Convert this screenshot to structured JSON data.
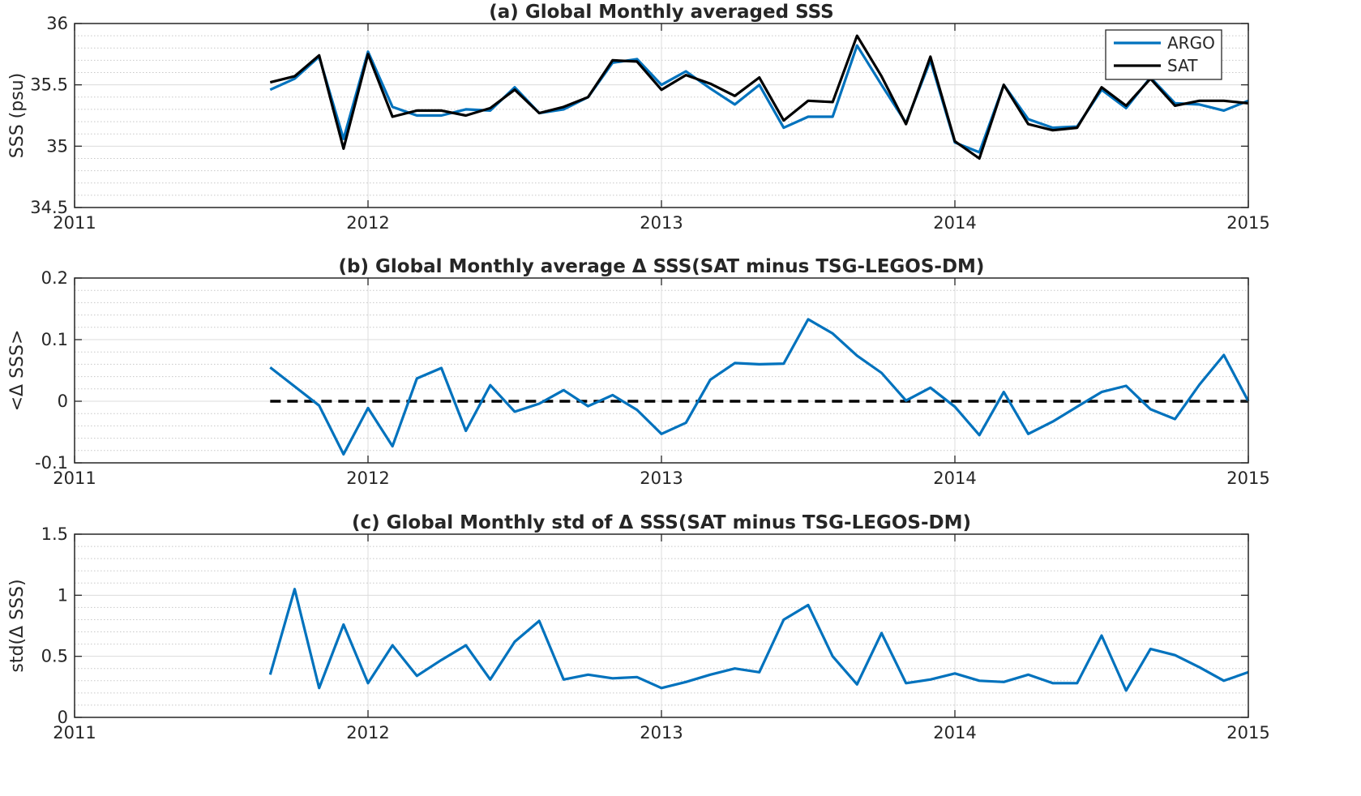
{
  "chart_data": [
    {
      "type": "line",
      "title": "(a) Global Monthly averaged SSS",
      "xlabel": "",
      "ylabel": "SSS (psu)",
      "xlim": [
        "2011-01-01",
        "2015-01-01"
      ],
      "ylim": [
        34.5,
        36
      ],
      "xticks": [
        "2011",
        "2012",
        "2013",
        "2014",
        "2015"
      ],
      "yticks": [
        "34.5",
        "35",
        "35.5",
        "36"
      ],
      "grid": true,
      "legend": "top-right",
      "x": [
        "2011-09",
        "2011-10",
        "2011-11",
        "2011-12",
        "2012-01",
        "2012-02",
        "2012-03",
        "2012-04",
        "2012-05",
        "2012-06",
        "2012-07",
        "2012-08",
        "2012-09",
        "2012-10",
        "2012-11",
        "2012-12",
        "2013-01",
        "2013-02",
        "2013-03",
        "2013-04",
        "2013-05",
        "2013-06",
        "2013-07",
        "2013-08",
        "2013-09",
        "2013-10",
        "2013-11",
        "2013-12",
        "2014-01",
        "2014-02",
        "2014-03",
        "2014-04",
        "2014-05",
        "2014-06",
        "2014-07",
        "2014-08",
        "2014-09",
        "2014-10",
        "2014-11",
        "2014-12",
        "2015-01"
      ],
      "series": [
        {
          "name": "ARGO",
          "color": "#0072BD",
          "values": [
            35.46,
            35.55,
            35.73,
            35.06,
            35.77,
            35.32,
            35.25,
            35.25,
            35.3,
            35.29,
            35.48,
            35.27,
            35.3,
            35.4,
            35.68,
            35.71,
            35.5,
            35.61,
            35.47,
            35.34,
            35.5,
            35.15,
            35.24,
            35.24,
            35.82,
            35.5,
            35.19,
            35.7,
            35.03,
            34.95,
            35.5,
            35.22,
            35.15,
            35.16,
            35.46,
            35.31,
            35.56,
            35.35,
            35.34,
            35.29,
            35.37
          ]
        },
        {
          "name": "SAT",
          "color": "#000000",
          "values": [
            35.52,
            35.57,
            35.74,
            34.98,
            35.75,
            35.24,
            35.29,
            35.29,
            35.25,
            35.31,
            35.46,
            35.27,
            35.32,
            35.4,
            35.7,
            35.69,
            35.46,
            35.58,
            35.51,
            35.41,
            35.56,
            35.21,
            35.37,
            35.36,
            35.9,
            35.57,
            35.18,
            35.73,
            35.04,
            34.9,
            35.5,
            35.18,
            35.13,
            35.15,
            35.48,
            35.33,
            35.55,
            35.33,
            35.37,
            35.37,
            35.35
          ]
        }
      ]
    },
    {
      "type": "line",
      "title": "(b) Global Monthly average Δ SSS(SAT minus TSG-LEGOS-DM)",
      "xlabel": "",
      "ylabel": "<Δ SSS>",
      "xlim": [
        "2011-01-01",
        "2015-01-01"
      ],
      "ylim": [
        -0.1,
        0.2
      ],
      "xticks": [
        "2011",
        "2012",
        "2013",
        "2014",
        "2015"
      ],
      "yticks": [
        "-0.1",
        "0",
        "0.1",
        "0.2"
      ],
      "grid": true,
      "reference_line": {
        "y": 0,
        "style": "dashed",
        "color": "#000000"
      },
      "x": [
        "2011-09",
        "2011-10",
        "2011-11",
        "2011-12",
        "2012-01",
        "2012-02",
        "2012-03",
        "2012-04",
        "2012-05",
        "2012-06",
        "2012-07",
        "2012-08",
        "2012-09",
        "2012-10",
        "2012-11",
        "2012-12",
        "2013-01",
        "2013-02",
        "2013-03",
        "2013-04",
        "2013-05",
        "2013-06",
        "2013-07",
        "2013-08",
        "2013-09",
        "2013-10",
        "2013-11",
        "2013-12",
        "2014-01",
        "2014-02",
        "2014-03",
        "2014-04",
        "2014-05",
        "2014-06",
        "2014-07",
        "2014-08",
        "2014-09",
        "2014-10",
        "2014-11",
        "2014-12",
        "2015-01"
      ],
      "series": [
        {
          "color": "#0072BD",
          "values": [
            0.055,
            0.024,
            -0.007,
            -0.086,
            -0.011,
            -0.073,
            0.037,
            0.054,
            -0.048,
            0.026,
            -0.017,
            -0.004,
            0.018,
            -0.008,
            0.01,
            -0.014,
            -0.053,
            -0.035,
            0.035,
            0.062,
            0.06,
            0.061,
            0.133,
            0.11,
            0.074,
            0.046,
            0.001,
            0.022,
            -0.009,
            -0.055,
            0.015,
            -0.053,
            -0.033,
            -0.009,
            0.015,
            0.025,
            -0.013,
            -0.029,
            0.027,
            0.075,
            0.0
          ]
        }
      ]
    },
    {
      "type": "line",
      "title": "(c) Global Monthly std of Δ SSS(SAT minus TSG-LEGOS-DM)",
      "xlabel": "",
      "ylabel": "std(Δ SSS)",
      "xlim": [
        "2011-01-01",
        "2015-01-01"
      ],
      "ylim": [
        0,
        1.5
      ],
      "xticks": [
        "2011",
        "2012",
        "2013",
        "2014",
        "2015"
      ],
      "yticks": [
        "0",
        "0.5",
        "1",
        "1.5"
      ],
      "grid": true,
      "x": [
        "2011-09",
        "2011-10",
        "2011-11",
        "2011-12",
        "2012-01",
        "2012-02",
        "2012-03",
        "2012-04",
        "2012-05",
        "2012-06",
        "2012-07",
        "2012-08",
        "2012-09",
        "2012-10",
        "2012-11",
        "2012-12",
        "2013-01",
        "2013-02",
        "2013-03",
        "2013-04",
        "2013-05",
        "2013-06",
        "2013-07",
        "2013-08",
        "2013-09",
        "2013-10",
        "2013-11",
        "2013-12",
        "2014-01",
        "2014-02",
        "2014-03",
        "2014-04",
        "2014-05",
        "2014-06",
        "2014-07",
        "2014-08",
        "2014-09",
        "2014-10",
        "2014-11",
        "2014-12",
        "2015-01"
      ],
      "series": [
        {
          "color": "#0072BD",
          "values": [
            0.35,
            1.05,
            0.24,
            0.76,
            0.28,
            0.59,
            0.34,
            0.47,
            0.59,
            0.31,
            0.62,
            0.79,
            0.31,
            0.35,
            0.32,
            0.33,
            0.24,
            0.29,
            0.35,
            0.4,
            0.37,
            0.8,
            0.92,
            0.5,
            0.27,
            0.69,
            0.28,
            0.31,
            0.36,
            0.3,
            0.29,
            0.35,
            0.28,
            0.28,
            0.67,
            0.22,
            0.56,
            0.51,
            0.41,
            0.3,
            0.37
          ]
        }
      ]
    }
  ]
}
